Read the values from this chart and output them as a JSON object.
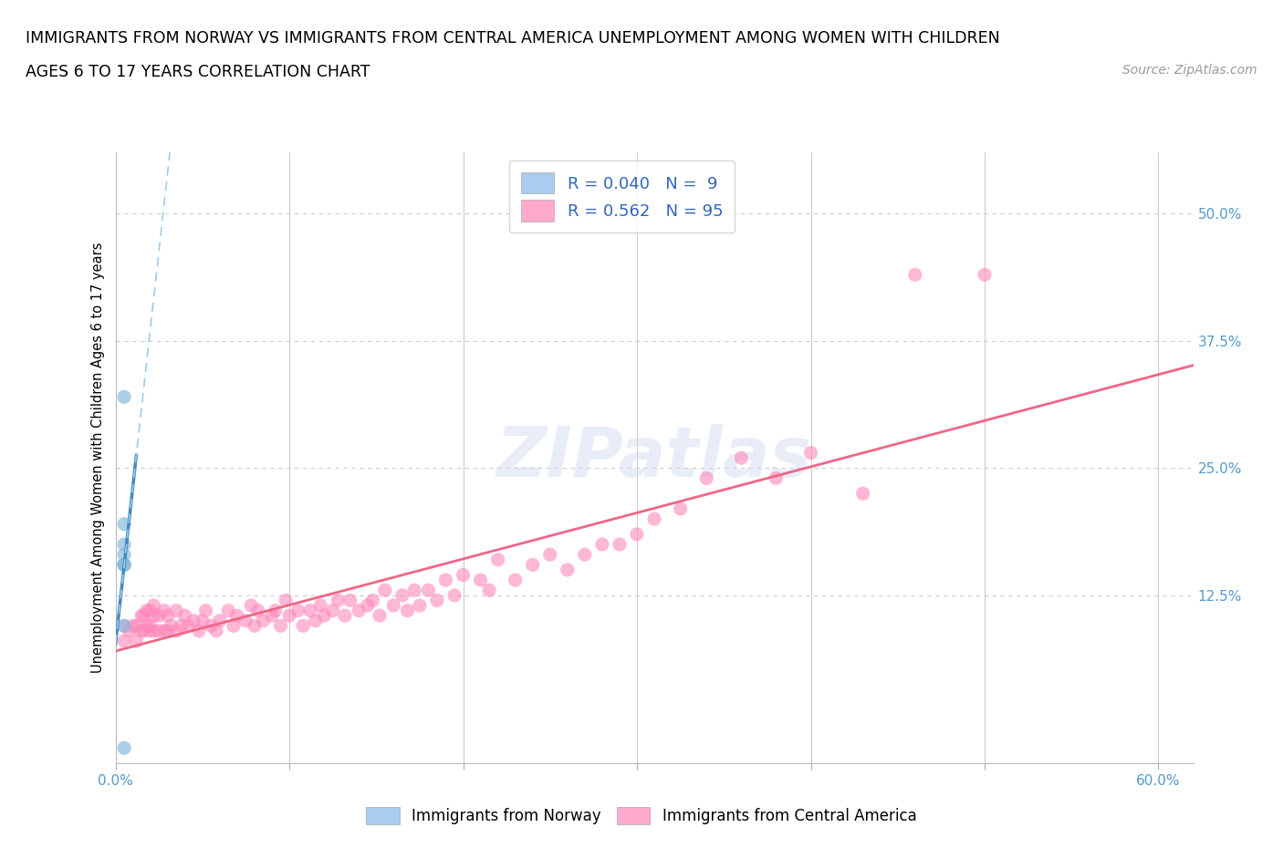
{
  "title_line1": "IMMIGRANTS FROM NORWAY VS IMMIGRANTS FROM CENTRAL AMERICA UNEMPLOYMENT AMONG WOMEN WITH CHILDREN",
  "title_line2": "AGES 6 TO 17 YEARS CORRELATION CHART",
  "source": "Source: ZipAtlas.com",
  "ylabel": "Unemployment Among Women with Children Ages 6 to 17 years",
  "xlim": [
    0.0,
    0.62
  ],
  "ylim": [
    -0.04,
    0.56
  ],
  "norway_R": 0.04,
  "norway_N": 9,
  "central_america_R": 0.562,
  "central_america_N": 95,
  "norway_legend_color": "#aaccee",
  "norway_scatter_color": "#88bbdd",
  "central_america_legend_color": "#ffaacc",
  "central_america_scatter_color": "#ff88bb",
  "norway_line_color": "#4488bb",
  "norway_dash_color": "#99ccee",
  "central_america_line_color": "#ee6688",
  "background_color": "#ffffff",
  "grid_color": "#cccccc",
  "watermark_text": "ZIPatlas",
  "norway_x": [
    0.005,
    0.005,
    0.005,
    0.005,
    0.005,
    0.005,
    0.005,
    0.005,
    0.005
  ],
  "norway_y": [
    0.32,
    0.195,
    0.175,
    0.165,
    0.155,
    0.155,
    0.155,
    0.095,
    -0.025
  ],
  "ca_x": [
    0.005,
    0.005,
    0.008,
    0.01,
    0.012,
    0.012,
    0.015,
    0.015,
    0.016,
    0.016,
    0.018,
    0.018,
    0.02,
    0.02,
    0.02,
    0.022,
    0.022,
    0.022,
    0.025,
    0.025,
    0.028,
    0.028,
    0.03,
    0.03,
    0.032,
    0.035,
    0.035,
    0.038,
    0.04,
    0.042,
    0.045,
    0.048,
    0.05,
    0.052,
    0.055,
    0.058,
    0.06,
    0.065,
    0.068,
    0.07,
    0.075,
    0.078,
    0.08,
    0.082,
    0.085,
    0.09,
    0.092,
    0.095,
    0.098,
    0.1,
    0.105,
    0.108,
    0.112,
    0.115,
    0.118,
    0.12,
    0.125,
    0.128,
    0.132,
    0.135,
    0.14,
    0.145,
    0.148,
    0.152,
    0.155,
    0.16,
    0.165,
    0.168,
    0.172,
    0.175,
    0.18,
    0.185,
    0.19,
    0.195,
    0.2,
    0.21,
    0.215,
    0.22,
    0.23,
    0.24,
    0.25,
    0.26,
    0.27,
    0.28,
    0.29,
    0.3,
    0.31,
    0.325,
    0.34,
    0.36,
    0.38,
    0.4,
    0.43,
    0.46,
    0.5
  ],
  "ca_y": [
    0.095,
    0.08,
    0.09,
    0.095,
    0.08,
    0.095,
    0.09,
    0.105,
    0.09,
    0.105,
    0.095,
    0.11,
    0.09,
    0.095,
    0.11,
    0.09,
    0.105,
    0.115,
    0.09,
    0.105,
    0.09,
    0.11,
    0.09,
    0.105,
    0.095,
    0.09,
    0.11,
    0.095,
    0.105,
    0.095,
    0.1,
    0.09,
    0.1,
    0.11,
    0.095,
    0.09,
    0.1,
    0.11,
    0.095,
    0.105,
    0.1,
    0.115,
    0.095,
    0.11,
    0.1,
    0.105,
    0.11,
    0.095,
    0.12,
    0.105,
    0.11,
    0.095,
    0.11,
    0.1,
    0.115,
    0.105,
    0.11,
    0.12,
    0.105,
    0.12,
    0.11,
    0.115,
    0.12,
    0.105,
    0.13,
    0.115,
    0.125,
    0.11,
    0.13,
    0.115,
    0.13,
    0.12,
    0.14,
    0.125,
    0.145,
    0.14,
    0.13,
    0.16,
    0.14,
    0.155,
    0.165,
    0.15,
    0.165,
    0.175,
    0.175,
    0.185,
    0.2,
    0.21,
    0.24,
    0.26,
    0.24,
    0.265,
    0.225,
    0.44,
    0.44
  ]
}
